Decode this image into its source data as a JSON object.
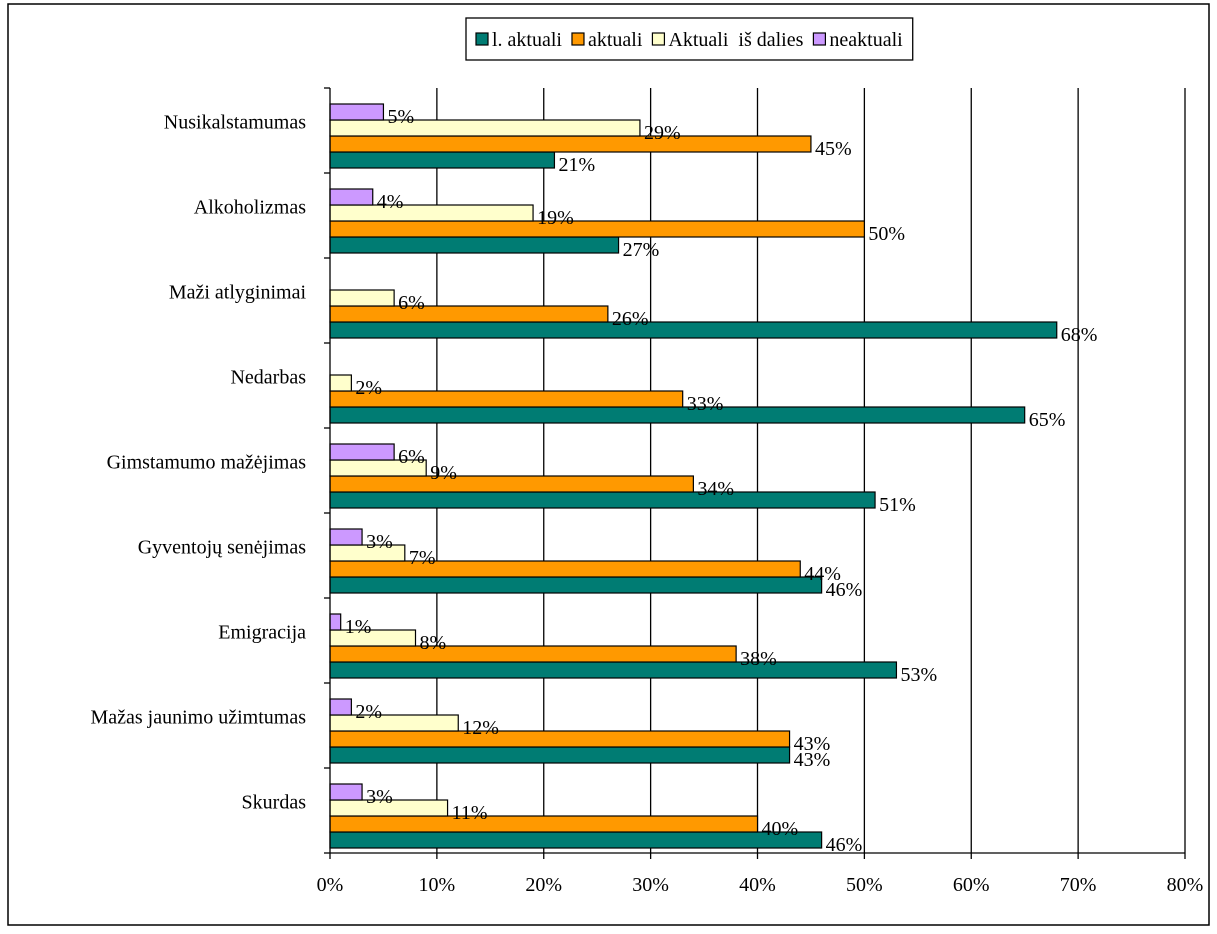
{
  "chart_data": {
    "type": "bar",
    "orientation": "horizontal",
    "categories": [
      "Nusikalstamumas",
      "Alkoholizmas",
      "Maži atlyginimai",
      "Nedarbas",
      "Gimstamumo mažėjimas",
      "Gyventojų senėjimas",
      "Emigracija",
      "Mažas jaunimo užimtumas",
      "Skurdas"
    ],
    "series": [
      {
        "name": "l. aktuali",
        "color": "#007C73",
        "values": [
          21,
          27,
          68,
          65,
          51,
          46,
          53,
          43,
          46
        ]
      },
      {
        "name": "aktuali",
        "color": "#FF9900",
        "values": [
          45,
          50,
          26,
          33,
          34,
          44,
          38,
          43,
          40
        ]
      },
      {
        "name": "Aktuali  iš dalies",
        "color": "#FFFFCC",
        "values": [
          29,
          19,
          6,
          2,
          9,
          7,
          8,
          12,
          11
        ]
      },
      {
        "name": "neaktuali",
        "color": "#CC99FF",
        "values": [
          5,
          4,
          null,
          null,
          6,
          3,
          1,
          2,
          3
        ]
      }
    ],
    "xlim": [
      0,
      80
    ],
    "xticks": [
      0,
      10,
      20,
      30,
      40,
      50,
      60,
      70,
      80
    ],
    "tick_suffix": "%",
    "value_suffix": "%",
    "legend_position": "top",
    "grid": "vertical"
  }
}
